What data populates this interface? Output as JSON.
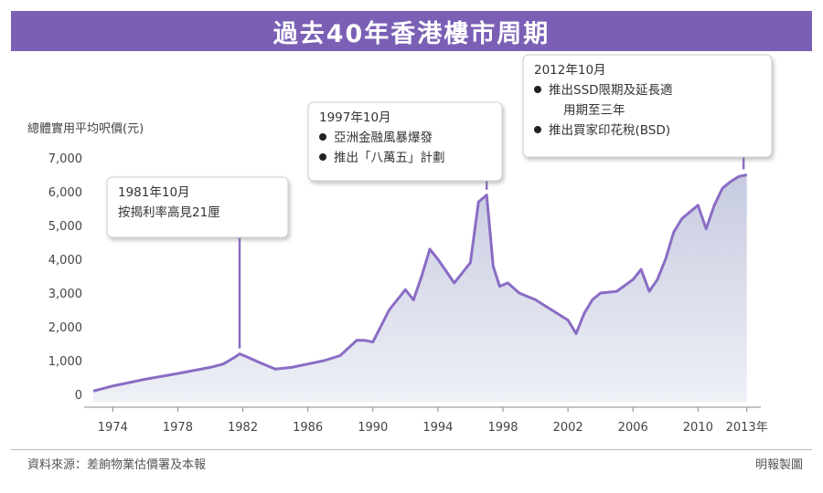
{
  "title": "過去40年香港樓市周期",
  "source": "資料來源：差餉物業估價署及本報",
  "credit": "明報製圖",
  "colors": {
    "accent": "#7b5fb5",
    "line": "#8a6cc4",
    "area": "#d6d9e6",
    "box_fill": "#ffffff",
    "box_stroke": "#cccccc"
  },
  "chart_data": {
    "type": "area",
    "ylabel": "總體實用平均呎價(元)",
    "xlabel": "",
    "x_unit_suffix": "年",
    "ylim": [
      0,
      7000
    ],
    "yticks": [
      0,
      1000,
      2000,
      3000,
      4000,
      5000,
      6000,
      7000
    ],
    "ytick_labels": [
      "0",
      "1,000",
      "2,000",
      "3,000",
      "4,000",
      "5,000",
      "6,000",
      "7,000"
    ],
    "xticks": [
      1974,
      1978,
      1982,
      1986,
      1990,
      1994,
      1998,
      2002,
      2006,
      2010,
      2013
    ],
    "xtick_labels": [
      "1974",
      "1978",
      "1982",
      "1986",
      "1990",
      "1994",
      "1998",
      "2002",
      "2006",
      "2010",
      "2013年"
    ],
    "x_range": [
      1972.8,
      2013.3
    ],
    "grid": false,
    "series": [
      {
        "name": "",
        "x": [
          1972.8,
          1974,
          1976,
          1978,
          1980,
          1980.8,
          1981.5,
          1981.8,
          1982.3,
          1983,
          1984,
          1985,
          1986,
          1987,
          1988,
          1989,
          1989.5,
          1990,
          1991,
          1992,
          1992.5,
          1993,
          1993.5,
          1994,
          1994.5,
          1995,
          1995.5,
          1996,
          1996.5,
          1997,
          1997.4,
          1997.8,
          1998.3,
          1999,
          2000,
          2001,
          2002,
          2002.5,
          2003,
          2003.5,
          2004,
          2005,
          2006,
          2006.5,
          2007,
          2007.5,
          2008,
          2008.5,
          2009,
          2009.5,
          2010,
          2010.5,
          2011,
          2011.5,
          2012,
          2012.5,
          2013
        ],
        "y": [
          100,
          250,
          450,
          620,
          800,
          900,
          1100,
          1200,
          1100,
          950,
          750,
          800,
          900,
          1000,
          1150,
          1600,
          1600,
          1550,
          2500,
          3100,
          2800,
          3500,
          4300,
          4000,
          3650,
          3300,
          3600,
          3900,
          5700,
          5900,
          3800,
          3200,
          3300,
          3000,
          2800,
          2500,
          2200,
          1800,
          2400,
          2800,
          3000,
          3050,
          3400,
          3700,
          3050,
          3400,
          4000,
          4800,
          5200,
          5400,
          5600,
          4900,
          5600,
          6100,
          6300,
          6450,
          6500
        ]
      }
    ],
    "annotations": [
      {
        "id": "a1981",
        "lines": [
          "1981年10月",
          "按揭利率高見21厘"
        ],
        "bullets": false,
        "x": 1981.8,
        "y": 1200
      },
      {
        "id": "a1997",
        "lines": [
          "1997年10月",
          "亞洲金融風暴爆發",
          "推出「八萬五」計劃"
        ],
        "bullets": true,
        "x": 1997.0,
        "y": 5900
      },
      {
        "id": "a2012",
        "lines": [
          "2012年10月",
          "推出SSD限期及延長適",
          "用期至三年",
          "推出買家印花稅(BSD)"
        ],
        "bullets": true,
        "x": 2012.8,
        "y": 6500
      }
    ]
  }
}
